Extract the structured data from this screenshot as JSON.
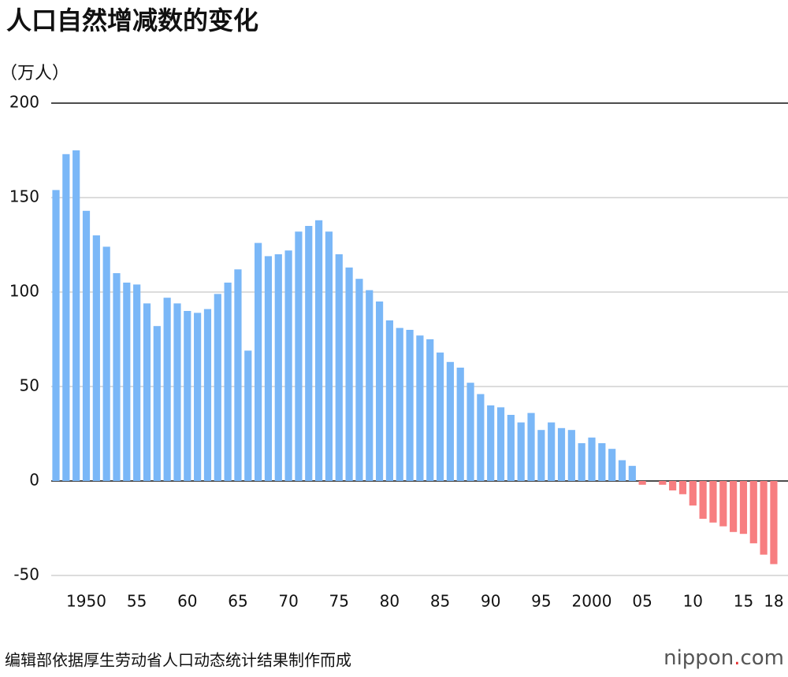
{
  "chart_data": {
    "type": "bar",
    "title": "人口自然增减数的变化",
    "y_label": "（万人）",
    "source": "编辑部依据厚生劳动省人口动态统计结果制作而成",
    "logo": [
      "nippon",
      ".",
      "com"
    ],
    "categories": [
      null,
      null,
      null,
      "1950",
      null,
      null,
      null,
      null,
      "55",
      null,
      null,
      null,
      null,
      "60",
      null,
      null,
      null,
      null,
      "65",
      null,
      null,
      null,
      null,
      "70",
      null,
      null,
      null,
      null,
      "75",
      null,
      null,
      null,
      null,
      "80",
      null,
      null,
      null,
      null,
      "85",
      null,
      null,
      null,
      null,
      "90",
      null,
      null,
      null,
      null,
      "95",
      null,
      null,
      null,
      null,
      "2000",
      null,
      null,
      null,
      null,
      "05",
      null,
      null,
      null,
      null,
      "10",
      null,
      null,
      null,
      null,
      "15",
      null,
      null,
      "18"
    ],
    "values": [
      154,
      173,
      175,
      143,
      130,
      124,
      110,
      105,
      104,
      94,
      82,
      97,
      94,
      90,
      89,
      91,
      99,
      105,
      112,
      69,
      126,
      119,
      120,
      122,
      132,
      135,
      138,
      132,
      120,
      113,
      107,
      101,
      95,
      85,
      81,
      80,
      77,
      75,
      68,
      63,
      60,
      52,
      46,
      40,
      39,
      35,
      31,
      36,
      27,
      31,
      28,
      27,
      20,
      23,
      20,
      17,
      11,
      8,
      -2,
      0,
      -2,
      -5,
      -7,
      -13,
      -20,
      -22,
      -24,
      -27,
      -28,
      -33,
      -39,
      -44
    ],
    "color": "#7ab7f7",
    "negative_color": "#f77e80",
    "ylim": [
      -50,
      200
    ],
    "yticks": [
      -50,
      0,
      50,
      100,
      150,
      200
    ],
    "grid": true
  }
}
